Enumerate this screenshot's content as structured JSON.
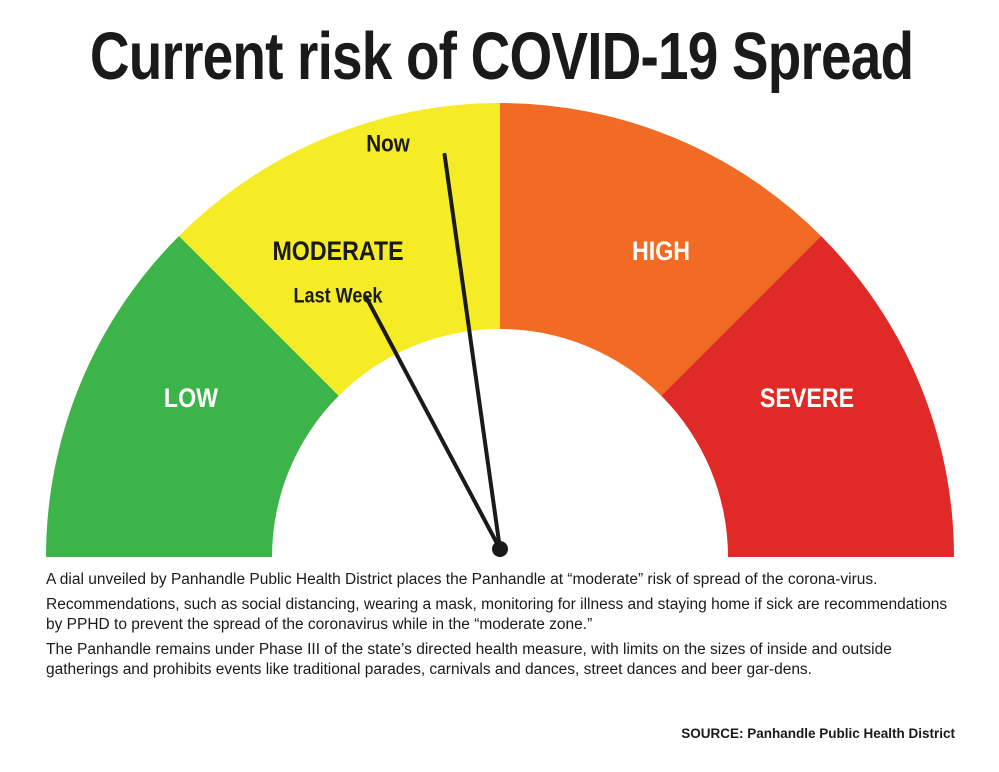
{
  "title": "Current risk of COVID-19 Spread",
  "chart_data": {
    "type": "gauge",
    "title": "Current risk of COVID-19 Spread",
    "segments": [
      {
        "label": "LOW",
        "start_deg": 0,
        "end_deg": 45,
        "color": "#3cb449",
        "label_color": "#ffffff"
      },
      {
        "label": "MODERATE",
        "start_deg": 45,
        "end_deg": 90,
        "color": "#f5ec26",
        "label_color": "#1a1a1a"
      },
      {
        "label": "HIGH",
        "start_deg": 90,
        "end_deg": 135,
        "color": "#f26b25",
        "label_color": "#ffffff"
      },
      {
        "label": "SEVERE",
        "start_deg": 135,
        "end_deg": 180,
        "color": "#e02a27",
        "label_color": "#ffffff"
      }
    ],
    "pointers": [
      {
        "label": "Now",
        "angle_deg": 82,
        "level": "MODERATE"
      },
      {
        "label": "Last Week",
        "angle_deg": 62,
        "level": "MODERATE"
      }
    ],
    "pointer_color": "#1a1a1a"
  },
  "body": {
    "paragraphs": [
      "A dial unveiled by Panhandle Public Health District places the Panhandle at “moderate” risk of spread of the corona-virus.",
      "Recommendations, such as social distancing, wearing a mask, monitoring for illness and staying home if sick are recommendations by PPHD to prevent the spread of the coronavirus while in the “moderate zone.”",
      "The Panhandle remains under Phase III of the state’s directed health measure, with limits on the sizes of inside and outside gatherings and prohibits events like traditional parades, carnivals and dances, street dances and beer gar-dens."
    ]
  },
  "source": "SOURCE: Panhandle Public Health District"
}
